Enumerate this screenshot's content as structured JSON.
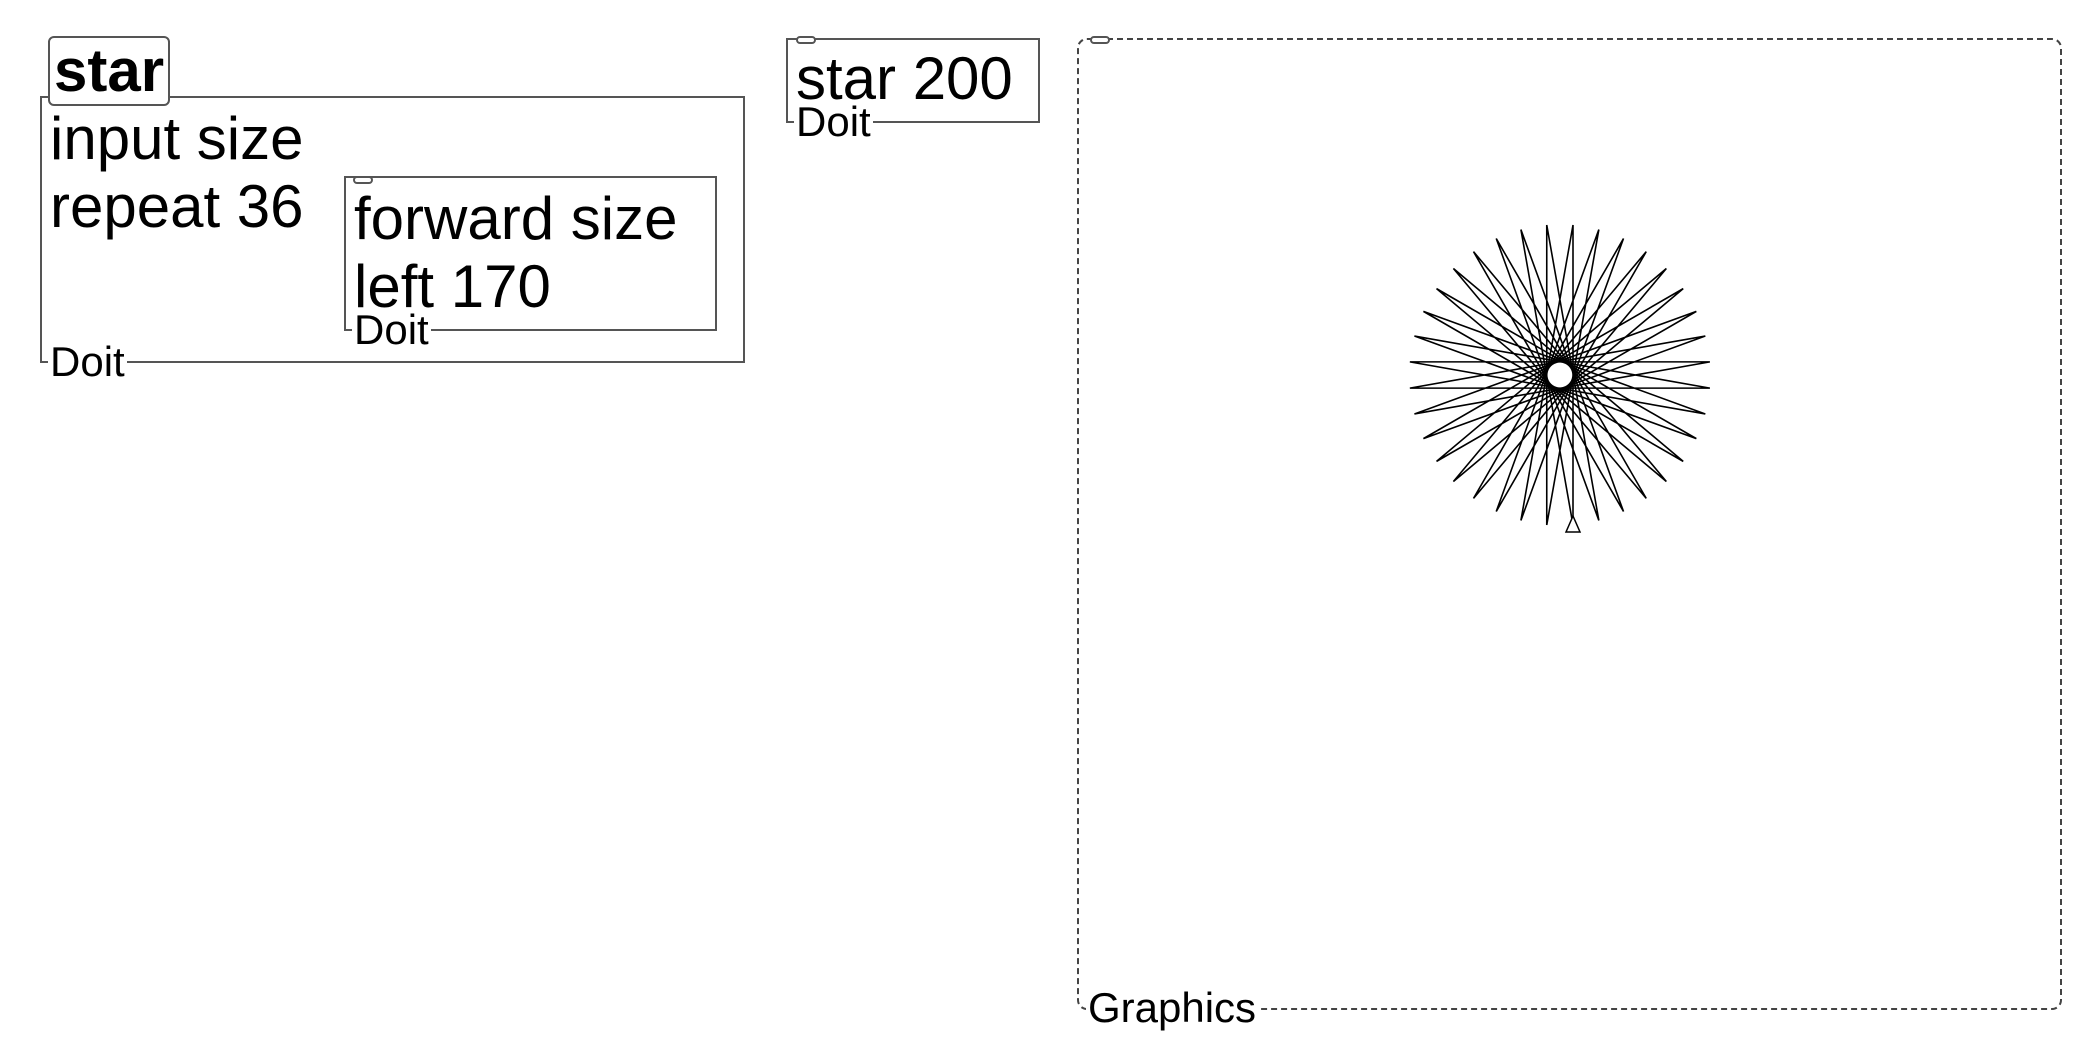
{
  "procedure": {
    "title": "star",
    "lines": [
      "input size",
      "repeat 36"
    ],
    "inner_block": {
      "lines": [
        "forward size",
        "left 170"
      ],
      "run_label": "Doit"
    },
    "run_label": "Doit"
  },
  "command": {
    "text": "star 200",
    "run_label": "Doit"
  },
  "graphics": {
    "label": "Graphics"
  },
  "drawing": {
    "repeat": 36,
    "forward": 200,
    "left_angle": 170,
    "stroke_color": "#000000"
  }
}
